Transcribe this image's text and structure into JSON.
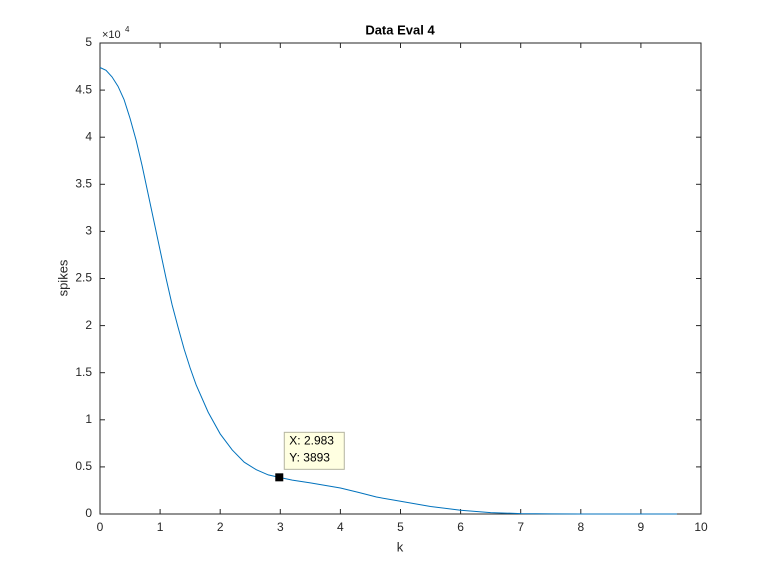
{
  "chart_data": {
    "type": "line",
    "title": "Data Eval 4",
    "xlabel": "k",
    "ylabel": "spikes",
    "y_multiplier": {
      "base": "×10",
      "exponent": "4"
    },
    "color": "#0072bd",
    "x": [
      0,
      0.1,
      0.2,
      0.3,
      0.4,
      0.5,
      0.6,
      0.7,
      0.8,
      0.9,
      1.0,
      1.1,
      1.2,
      1.3,
      1.4,
      1.5,
      1.6,
      1.8,
      2.0,
      2.2,
      2.4,
      2.6,
      2.8,
      2.983,
      3.2,
      3.5,
      4.0,
      4.3,
      4.6,
      5.0,
      5.5,
      6.0,
      6.5,
      7.0,
      7.5,
      8,
      9,
      9.6
    ],
    "values": [
      47400,
      47100,
      46400,
      45400,
      44000,
      42000,
      39700,
      37000,
      34000,
      31000,
      28000,
      25000,
      22200,
      19800,
      17500,
      15500,
      13700,
      10800,
      8500,
      6800,
      5500,
      4700,
      4150,
      3893,
      3600,
      3300,
      2760,
      2300,
      1800,
      1350,
      800,
      400,
      150,
      40,
      10,
      0,
      0,
      0
    ],
    "xlim": [
      0,
      10
    ],
    "ylim": [
      0,
      50000
    ],
    "xticks": [
      0,
      1,
      2,
      3,
      4,
      5,
      6,
      7,
      8,
      9,
      10
    ],
    "yticks": [
      0,
      {
        "value": 5000,
        "label": "0.5"
      },
      {
        "value": 10000,
        "label": "1"
      },
      {
        "value": 15000,
        "label": "1.5"
      },
      {
        "value": 20000,
        "label": "2"
      },
      {
        "value": 25000,
        "label": "2.5"
      },
      {
        "value": 30000,
        "label": "3"
      },
      {
        "value": 35000,
        "label": "3.5"
      },
      {
        "value": 40000,
        "label": "4"
      },
      {
        "value": 45000,
        "label": "4.5"
      },
      {
        "value": 50000,
        "label": "5"
      }
    ],
    "grid": false,
    "datatip": {
      "x": 2.983,
      "y": 3893,
      "labels": [
        "X: 2.983",
        "Y: 3893"
      ]
    }
  }
}
